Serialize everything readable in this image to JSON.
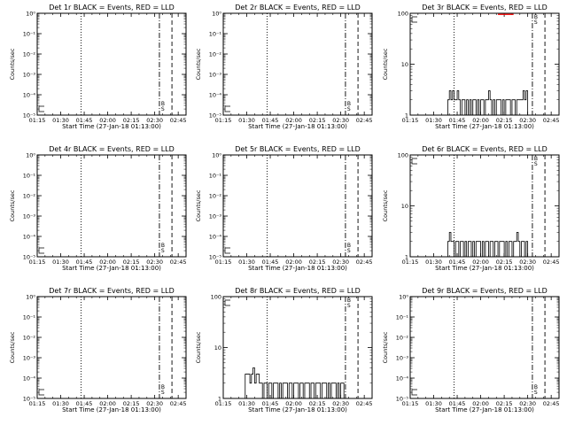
{
  "figure": {
    "x_label": "Start Time (27-Jan-18 01:13:00)",
    "y_label": "Counts/sec",
    "x_ticks": [
      "01:15",
      "01:30",
      "01:45",
      "02:00",
      "02:15",
      "02:30",
      "02:45"
    ],
    "log_ticks_small": [
      "10⁰",
      "10⁻¹",
      "10⁻²",
      "10⁻³",
      "10⁻⁴",
      "10⁻⁵"
    ],
    "log_ticks_large": [
      "1",
      "10",
      "100"
    ],
    "marker_labels": [
      "B",
      "S"
    ],
    "colors": {
      "events": "#000000",
      "lld": "#ff0000"
    }
  },
  "chart_data": [
    {
      "type": "line",
      "title": "Det 1r BLACK = Events, RED = LLD",
      "x_range_min": [
        2,
        97
      ],
      "scale": "small",
      "y_range": [
        1,
        1e-05
      ],
      "vlines": {
        "dotted": 30,
        "dashdot": 80,
        "dashed": 88
      },
      "series": [
        {
          "x": [],
          "y": []
        }
      ],
      "lld": null
    },
    {
      "type": "line",
      "title": "Det 2r BLACK = Events, RED = LLD",
      "x_range_min": [
        2,
        97
      ],
      "scale": "small",
      "y_range": [
        1,
        1e-05
      ],
      "vlines": {
        "dotted": 30,
        "dashdot": 80,
        "dashed": 88
      },
      "series": [
        {
          "x": [],
          "y": []
        }
      ],
      "lld": null
    },
    {
      "type": "line",
      "title": "Det 3r BLACK = Events, RED = LLD",
      "x_range_min": [
        2,
        97
      ],
      "scale": "large",
      "y_range": [
        1,
        100
      ],
      "vlines": {
        "dotted": 30,
        "dashdot": 80,
        "dashed": 88
      },
      "series": [
        {
          "x": [
            25,
            26,
            27,
            28,
            29,
            30,
            31,
            32,
            33,
            34,
            35,
            36,
            37,
            38,
            39,
            40,
            41,
            42,
            43,
            44,
            45,
            46,
            47,
            48,
            49,
            50,
            51,
            52,
            53,
            54,
            55,
            56,
            57,
            58,
            59,
            60,
            61,
            62,
            63,
            64,
            65,
            66,
            67,
            68,
            69,
            70,
            71,
            72,
            73,
            74,
            75,
            76,
            77
          ],
          "y": [
            1,
            2,
            3,
            2,
            3,
            2,
            2,
            3,
            2,
            1,
            2,
            2,
            1,
            2,
            1,
            2,
            1,
            2,
            2,
            1,
            2,
            1,
            2,
            2,
            1,
            2,
            2,
            3,
            2,
            1,
            2,
            1,
            2,
            2,
            2,
            1,
            2,
            1,
            2,
            2,
            2,
            1,
            2,
            2,
            1,
            2,
            2,
            2,
            2,
            3,
            2,
            3,
            1
          ]
        }
      ],
      "lld": {
        "x": [
          58,
          68
        ],
        "y": 95
      }
    },
    {
      "type": "line",
      "title": "Det 4r BLACK = Events, RED = LLD",
      "x_range_min": [
        2,
        97
      ],
      "scale": "small",
      "y_range": [
        1,
        1e-05
      ],
      "vlines": {
        "dotted": 30,
        "dashdot": 80,
        "dashed": 88
      },
      "series": [
        {
          "x": [],
          "y": []
        }
      ],
      "lld": null
    },
    {
      "type": "line",
      "title": "Det 5r BLACK = Events, RED = LLD",
      "x_range_min": [
        2,
        97
      ],
      "scale": "small",
      "y_range": [
        1,
        1e-05
      ],
      "vlines": {
        "dotted": 30,
        "dashdot": 80,
        "dashed": 88
      },
      "series": [
        {
          "x": [],
          "y": []
        }
      ],
      "lld": null
    },
    {
      "type": "line",
      "title": "Det 6r BLACK = Events, RED = LLD",
      "x_range_min": [
        2,
        97
      ],
      "scale": "large",
      "y_range": [
        1,
        100
      ],
      "vlines": {
        "dotted": 30,
        "dashdot": 80,
        "dashed": 88
      },
      "series": [
        {
          "x": [
            25,
            26,
            27,
            28,
            29,
            30,
            31,
            32,
            33,
            34,
            35,
            36,
            37,
            38,
            39,
            40,
            41,
            42,
            43,
            44,
            45,
            46,
            47,
            48,
            49,
            50,
            51,
            52,
            53,
            54,
            55,
            56,
            57,
            58,
            59,
            60,
            61,
            62,
            63,
            64,
            65,
            66,
            67,
            68,
            69,
            70,
            71,
            72,
            73,
            74,
            75,
            76,
            77
          ],
          "y": [
            1,
            2,
            3,
            2,
            2,
            1,
            2,
            2,
            1,
            2,
            2,
            1,
            2,
            1,
            2,
            2,
            1,
            2,
            1,
            2,
            2,
            2,
            1,
            2,
            1,
            2,
            2,
            1,
            2,
            2,
            1,
            2,
            2,
            1,
            2,
            2,
            2,
            1,
            2,
            1,
            2,
            2,
            1,
            2,
            2,
            3,
            2,
            1,
            2,
            2,
            1,
            2,
            1
          ]
        }
      ],
      "lld": null
    },
    {
      "type": "line",
      "title": "Det 7r BLACK = Events, RED = LLD",
      "x_range_min": [
        2,
        97
      ],
      "scale": "small",
      "y_range": [
        1,
        1e-05
      ],
      "vlines": {
        "dotted": 30,
        "dashdot": 80,
        "dashed": 88
      },
      "series": [
        {
          "x": [],
          "y": []
        }
      ],
      "lld": null
    },
    {
      "type": "line",
      "title": "Det 8r BLACK = Events, RED = LLD",
      "x_range_min": [
        2,
        97
      ],
      "scale": "large",
      "y_range": [
        1,
        100
      ],
      "vlines": {
        "dotted": 30,
        "dashdot": 80,
        "dashed": 88
      },
      "series": [
        {
          "x": [
            15,
            16,
            17,
            18,
            19,
            20,
            21,
            22,
            23,
            24,
            25,
            26,
            27,
            28,
            29,
            30,
            31,
            32,
            33,
            34,
            35,
            36,
            37,
            38,
            39,
            40,
            41,
            42,
            43,
            44,
            45,
            46,
            47,
            48,
            49,
            50,
            51,
            52,
            53,
            54,
            55,
            56,
            57,
            58,
            59,
            60,
            61,
            62,
            63,
            64,
            65,
            66,
            67,
            68,
            69,
            70,
            71,
            72,
            73,
            74,
            75,
            76,
            77,
            78,
            79
          ],
          "y": [
            1,
            3,
            3,
            3,
            2,
            3,
            4,
            2,
            3,
            3,
            2,
            2,
            1,
            2,
            2,
            1,
            2,
            2,
            1,
            2,
            2,
            2,
            1,
            2,
            1,
            2,
            2,
            2,
            1,
            2,
            2,
            1,
            2,
            2,
            2,
            1,
            2,
            2,
            1,
            2,
            2,
            2,
            1,
            2,
            2,
            1,
            2,
            2,
            2,
            1,
            2,
            2,
            2,
            1,
            2,
            1,
            2,
            2,
            2,
            1,
            2,
            1,
            2,
            2,
            1
          ]
        }
      ],
      "lld": null
    },
    {
      "type": "line",
      "title": "Det 9r BLACK = Events, RED = LLD",
      "x_range_min": [
        2,
        97
      ],
      "scale": "small",
      "y_range": [
        1,
        1e-05
      ],
      "vlines": {
        "dotted": 30,
        "dashdot": 80,
        "dashed": 88
      },
      "series": [
        {
          "x": [],
          "y": []
        }
      ],
      "lld": null
    }
  ]
}
